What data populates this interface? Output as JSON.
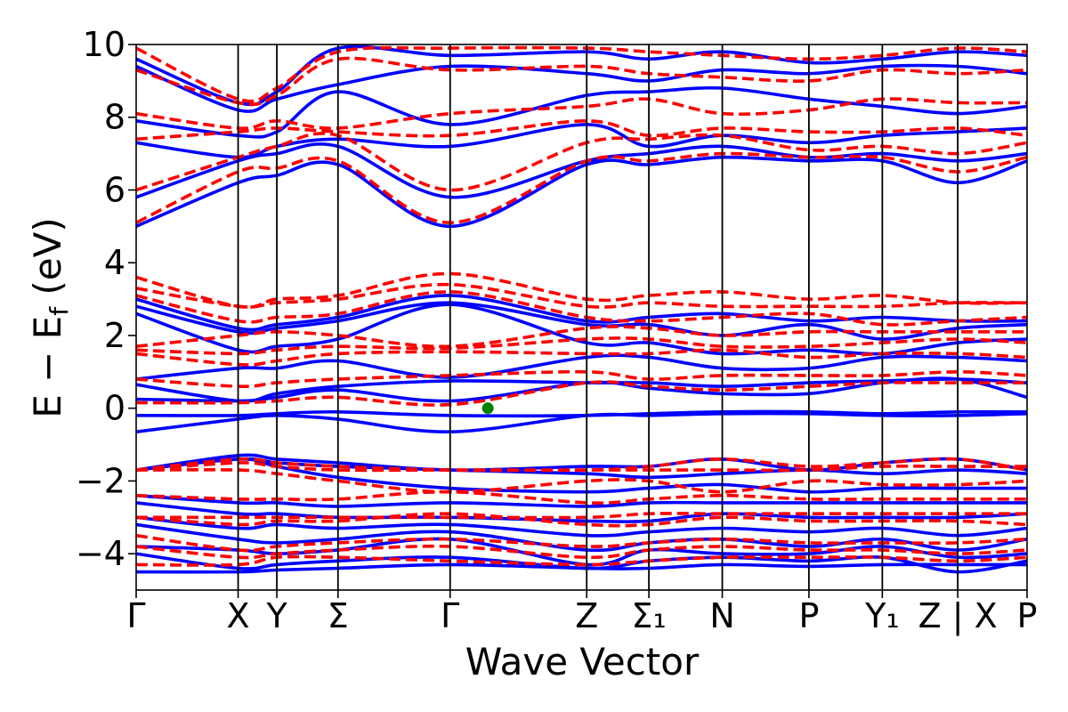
{
  "chart_data": {
    "type": "line",
    "title": "",
    "xlabel": "Wave Vector",
    "ylabel": "E − E_f (eV)",
    "ylabel_parts": {
      "main": "E − E",
      "sub": "f",
      "unit": " (eV)"
    },
    "ylim": [
      -5,
      10
    ],
    "yticks": [
      10,
      8,
      6,
      4,
      2,
      0,
      -2,
      -4
    ],
    "grid": false,
    "legend": "none",
    "kpath": {
      "labels": [
        "Γ",
        "X",
        "Y",
        "Σ",
        "Γ",
        "Z",
        "Σ₁",
        "N",
        "P",
        "Y₁",
        "Z | X",
        "P"
      ],
      "positions": [
        0,
        1,
        1.38,
        1.98,
        3.08,
        4.42,
        5.03,
        5.75,
        6.6,
        7.32,
        8.06,
        8.74
      ],
      "xlim": [
        0,
        8.74
      ]
    },
    "series": [
      {
        "style": "solid",
        "color": "#0000ff",
        "bands": [
          [
            -4.5,
            -4.5,
            -4.45,
            -4.4,
            -4.3,
            -4.4,
            -4.4,
            -4.3,
            -4.35,
            -4.3,
            -4.3,
            -4.3
          ],
          [
            -4.0,
            -4.4,
            -4.3,
            -4.2,
            -4.1,
            -4.4,
            -4.2,
            -4.1,
            -4.2,
            -4.1,
            -4.5,
            -4.2
          ],
          [
            -3.8,
            -3.9,
            -4.0,
            -3.9,
            -3.6,
            -4.3,
            -3.9,
            -4.0,
            -4.0,
            -3.8,
            -4.1,
            -4.0
          ],
          [
            -3.2,
            -3.6,
            -3.7,
            -3.6,
            -3.4,
            -3.9,
            -3.7,
            -3.6,
            -3.8,
            -3.6,
            -3.9,
            -3.6
          ],
          [
            -3.0,
            -3.3,
            -3.2,
            -3.3,
            -3.2,
            -3.5,
            -3.4,
            -3.3,
            -3.4,
            -3.3,
            -3.5,
            -3.3
          ],
          [
            -2.6,
            -2.9,
            -2.9,
            -3.0,
            -3.0,
            -3.1,
            -3.1,
            -2.9,
            -3.0,
            -3.0,
            -3.0,
            -2.9
          ],
          [
            -2.4,
            -2.6,
            -2.6,
            -2.7,
            -2.6,
            -2.7,
            -2.6,
            -2.6,
            -2.6,
            -2.6,
            -2.6,
            -2.6
          ],
          [
            -1.7,
            -1.4,
            -1.6,
            -1.9,
            -2.2,
            -2.3,
            -2.2,
            -2.1,
            -2.3,
            -2.2,
            -2.2,
            -2.2
          ],
          [
            -1.7,
            -1.4,
            -1.5,
            -1.6,
            -1.7,
            -1.8,
            -1.9,
            -1.8,
            -1.7,
            -1.8,
            -1.7,
            -1.8
          ],
          [
            -1.7,
            -1.3,
            -1.4,
            -1.5,
            -1.7,
            -1.6,
            -1.6,
            -1.4,
            -1.7,
            -1.5,
            -1.4,
            -1.7
          ],
          [
            -0.65,
            -0.3,
            -0.2,
            -0.3,
            -0.65,
            -0.2,
            -0.2,
            -0.15,
            -0.15,
            -0.2,
            -0.2,
            -0.15
          ],
          [
            -0.2,
            -0.2,
            -0.15,
            -0.1,
            -0.2,
            -0.2,
            -0.15,
            -0.1,
            -0.1,
            -0.15,
            -0.1,
            -0.1
          ],
          [
            0.25,
            0.2,
            0.3,
            0.5,
            0.2,
            0.7,
            0.55,
            0.4,
            0.4,
            0.7,
            0.8,
            0.3
          ],
          [
            0.65,
            0.2,
            0.4,
            0.6,
            0.75,
            0.7,
            0.7,
            0.6,
            0.7,
            0.75,
            0.8,
            0.7
          ],
          [
            0.8,
            1.1,
            1.1,
            1.3,
            0.85,
            1.4,
            1.4,
            1.1,
            1.1,
            1.4,
            1.4,
            1.3
          ],
          [
            2.6,
            1.6,
            1.7,
            1.9,
            2.85,
            1.8,
            1.8,
            1.5,
            1.6,
            1.5,
            1.8,
            1.9
          ],
          [
            2.8,
            2.1,
            2.2,
            2.4,
            2.9,
            2.3,
            2.3,
            2.0,
            2.3,
            1.9,
            2.2,
            2.3
          ],
          [
            3.0,
            2.2,
            2.3,
            2.5,
            3.1,
            2.4,
            2.5,
            2.6,
            2.4,
            2.5,
            2.4,
            2.4
          ],
          [
            5.0,
            6.2,
            6.4,
            6.7,
            5.0,
            6.7,
            6.7,
            6.9,
            6.8,
            6.8,
            6.2,
            6.8
          ],
          [
            5.8,
            6.8,
            7.0,
            7.2,
            5.8,
            6.8,
            7.0,
            7.2,
            6.9,
            7.0,
            6.8,
            7.0
          ],
          [
            7.3,
            6.9,
            7.2,
            7.4,
            7.2,
            7.8,
            7.2,
            7.5,
            7.3,
            7.5,
            7.6,
            7.7
          ],
          [
            7.9,
            7.5,
            7.6,
            8.7,
            7.8,
            8.6,
            8.7,
            8.8,
            8.5,
            8.3,
            8.1,
            8.3
          ],
          [
            9.4,
            8.2,
            8.5,
            8.9,
            9.4,
            9.2,
            9.0,
            9.3,
            9.2,
            9.4,
            9.4,
            9.2
          ],
          [
            9.6,
            8.4,
            8.7,
            9.9,
            9.7,
            9.8,
            9.6,
            9.8,
            9.5,
            9.6,
            9.8,
            9.7
          ]
        ]
      },
      {
        "style": "dashed",
        "color": "#ff0000",
        "bands": [
          [
            -4.3,
            -4.3,
            -4.1,
            -4.1,
            -4.2,
            -4.3,
            -4.2,
            -4.1,
            -4.1,
            -4.1,
            -4.2,
            -4.1
          ],
          [
            -3.8,
            -4.1,
            -4.0,
            -3.9,
            -3.8,
            -4.1,
            -3.9,
            -3.8,
            -3.9,
            -3.9,
            -4.0,
            -3.9
          ],
          [
            -3.5,
            -3.9,
            -3.8,
            -3.7,
            -3.6,
            -3.8,
            -3.7,
            -3.6,
            -3.7,
            -3.7,
            -3.7,
            -3.6
          ],
          [
            -3.0,
            -3.2,
            -3.1,
            -3.1,
            -2.9,
            -3.2,
            -3.2,
            -3.0,
            -3.1,
            -3.1,
            -3.1,
            -3.2
          ],
          [
            -3.0,
            -3.0,
            -3.0,
            -3.0,
            -3.0,
            -3.0,
            -2.9,
            -2.9,
            -2.9,
            -2.9,
            -2.9,
            -2.9
          ],
          [
            -2.4,
            -2.5,
            -2.5,
            -2.5,
            -2.3,
            -2.6,
            -2.5,
            -2.4,
            -2.5,
            -2.5,
            -2.5,
            -2.5
          ],
          [
            -1.7,
            -1.7,
            -1.8,
            -2.0,
            -2.3,
            -2.0,
            -2.0,
            -2.3,
            -2.0,
            -2.1,
            -2.1,
            -2.0
          ],
          [
            -1.7,
            -1.5,
            -1.6,
            -1.7,
            -1.7,
            -1.7,
            -1.7,
            -1.7,
            -1.7,
            -1.6,
            -1.6,
            -1.6
          ],
          [
            -1.7,
            -1.4,
            -1.5,
            -1.6,
            -1.7,
            -1.7,
            -1.6,
            -1.4,
            -1.6,
            -1.5,
            -1.4,
            -1.7
          ],
          [
            0.15,
            0.15,
            0.2,
            0.3,
            0.1,
            0.7,
            0.6,
            0.5,
            0.6,
            0.7,
            0.7,
            0.7
          ],
          [
            0.8,
            0.6,
            0.7,
            0.8,
            0.9,
            1.0,
            0.8,
            0.9,
            0.9,
            0.9,
            1.0,
            0.9
          ],
          [
            1.5,
            1.2,
            1.3,
            1.5,
            1.55,
            1.5,
            1.5,
            1.6,
            1.4,
            1.5,
            1.5,
            1.4
          ],
          [
            1.6,
            1.5,
            1.6,
            1.7,
            1.65,
            1.9,
            1.9,
            1.7,
            1.7,
            1.8,
            1.9,
            1.8
          ],
          [
            1.7,
            2.0,
            2.1,
            2.0,
            1.7,
            2.2,
            2.2,
            2.0,
            2.1,
            2.1,
            2.1,
            2.1
          ],
          [
            3.1,
            2.4,
            2.5,
            2.6,
            3.2,
            2.5,
            2.4,
            2.5,
            2.6,
            2.3,
            2.4,
            2.5
          ],
          [
            3.3,
            2.8,
            2.9,
            3.0,
            3.4,
            2.8,
            2.9,
            2.8,
            2.8,
            2.8,
            2.9,
            2.9
          ],
          [
            3.6,
            2.8,
            3.0,
            3.1,
            3.7,
            3.0,
            3.1,
            3.2,
            3.0,
            3.1,
            2.9,
            2.9
          ],
          [
            5.1,
            6.5,
            6.6,
            6.8,
            5.1,
            6.8,
            6.8,
            7.0,
            6.9,
            6.9,
            6.5,
            6.9
          ],
          [
            6.0,
            6.9,
            7.2,
            7.5,
            6.0,
            7.3,
            7.4,
            7.5,
            7.1,
            7.2,
            7.0,
            7.3
          ],
          [
            7.4,
            7.6,
            7.7,
            7.6,
            7.5,
            7.9,
            7.5,
            7.7,
            7.6,
            7.6,
            7.7,
            7.5
          ],
          [
            8.1,
            7.7,
            7.9,
            7.7,
            8.1,
            8.3,
            8.5,
            8.1,
            8.2,
            8.5,
            8.4,
            8.4
          ],
          [
            9.3,
            8.4,
            8.6,
            9.6,
            9.3,
            9.4,
            9.2,
            9.1,
            9.0,
            9.3,
            9.2,
            9.3
          ],
          [
            9.9,
            8.5,
            8.8,
            9.8,
            9.9,
            9.9,
            9.8,
            9.7,
            9.6,
            9.7,
            9.9,
            9.8
          ]
        ]
      }
    ],
    "marker": {
      "x": 3.45,
      "y": 0.0,
      "color": "#008000"
    }
  }
}
